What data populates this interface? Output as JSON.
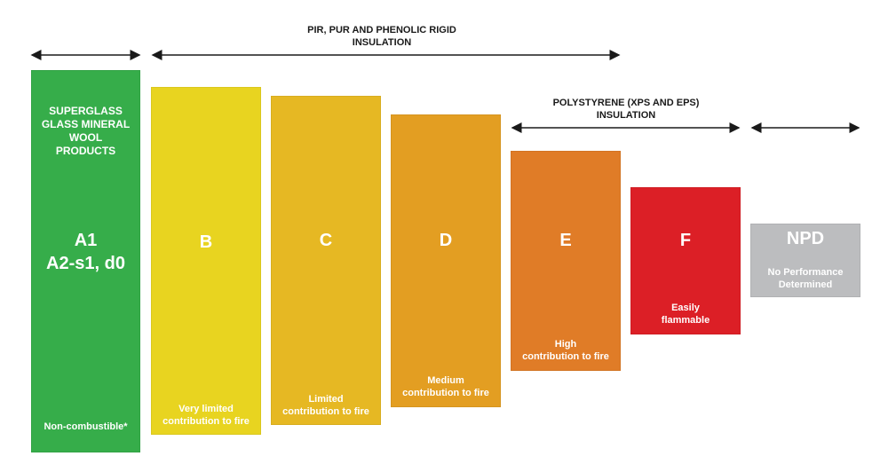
{
  "groups": {
    "top": "PIR, PUR AND PHENOLIC RIGID\nINSULATION",
    "poly": "POLYSTYRENE (XPS AND EPS)\nINSULATION"
  },
  "a1": {
    "product": "SUPERGLASS\nGLASS MINERAL\nWOOL\nPRODUCTS",
    "class": "A1\nA2-s1, d0",
    "note": "Non-combustible*"
  },
  "bars": [
    {
      "class": "B",
      "desc": "Very limited\ncontribution to fire",
      "color": "#e8d420"
    },
    {
      "class": "C",
      "desc": "Limited\ncontribution to fire",
      "color": "#e6b823"
    },
    {
      "class": "D",
      "desc": "Medium\ncontribution to fire",
      "color": "#e39e22"
    },
    {
      "class": "E",
      "desc": "High\ncontribution to fire",
      "color": "#e07c27"
    },
    {
      "class": "F",
      "desc": "Easily\nflammable",
      "color": "#dc1f26"
    },
    {
      "class": "NPD",
      "desc": "No Performance\nDetermined",
      "color": "#bcbdbf"
    }
  ],
  "colors": {
    "a1": "#36ad4a",
    "arrow": "#1a1a1a"
  }
}
